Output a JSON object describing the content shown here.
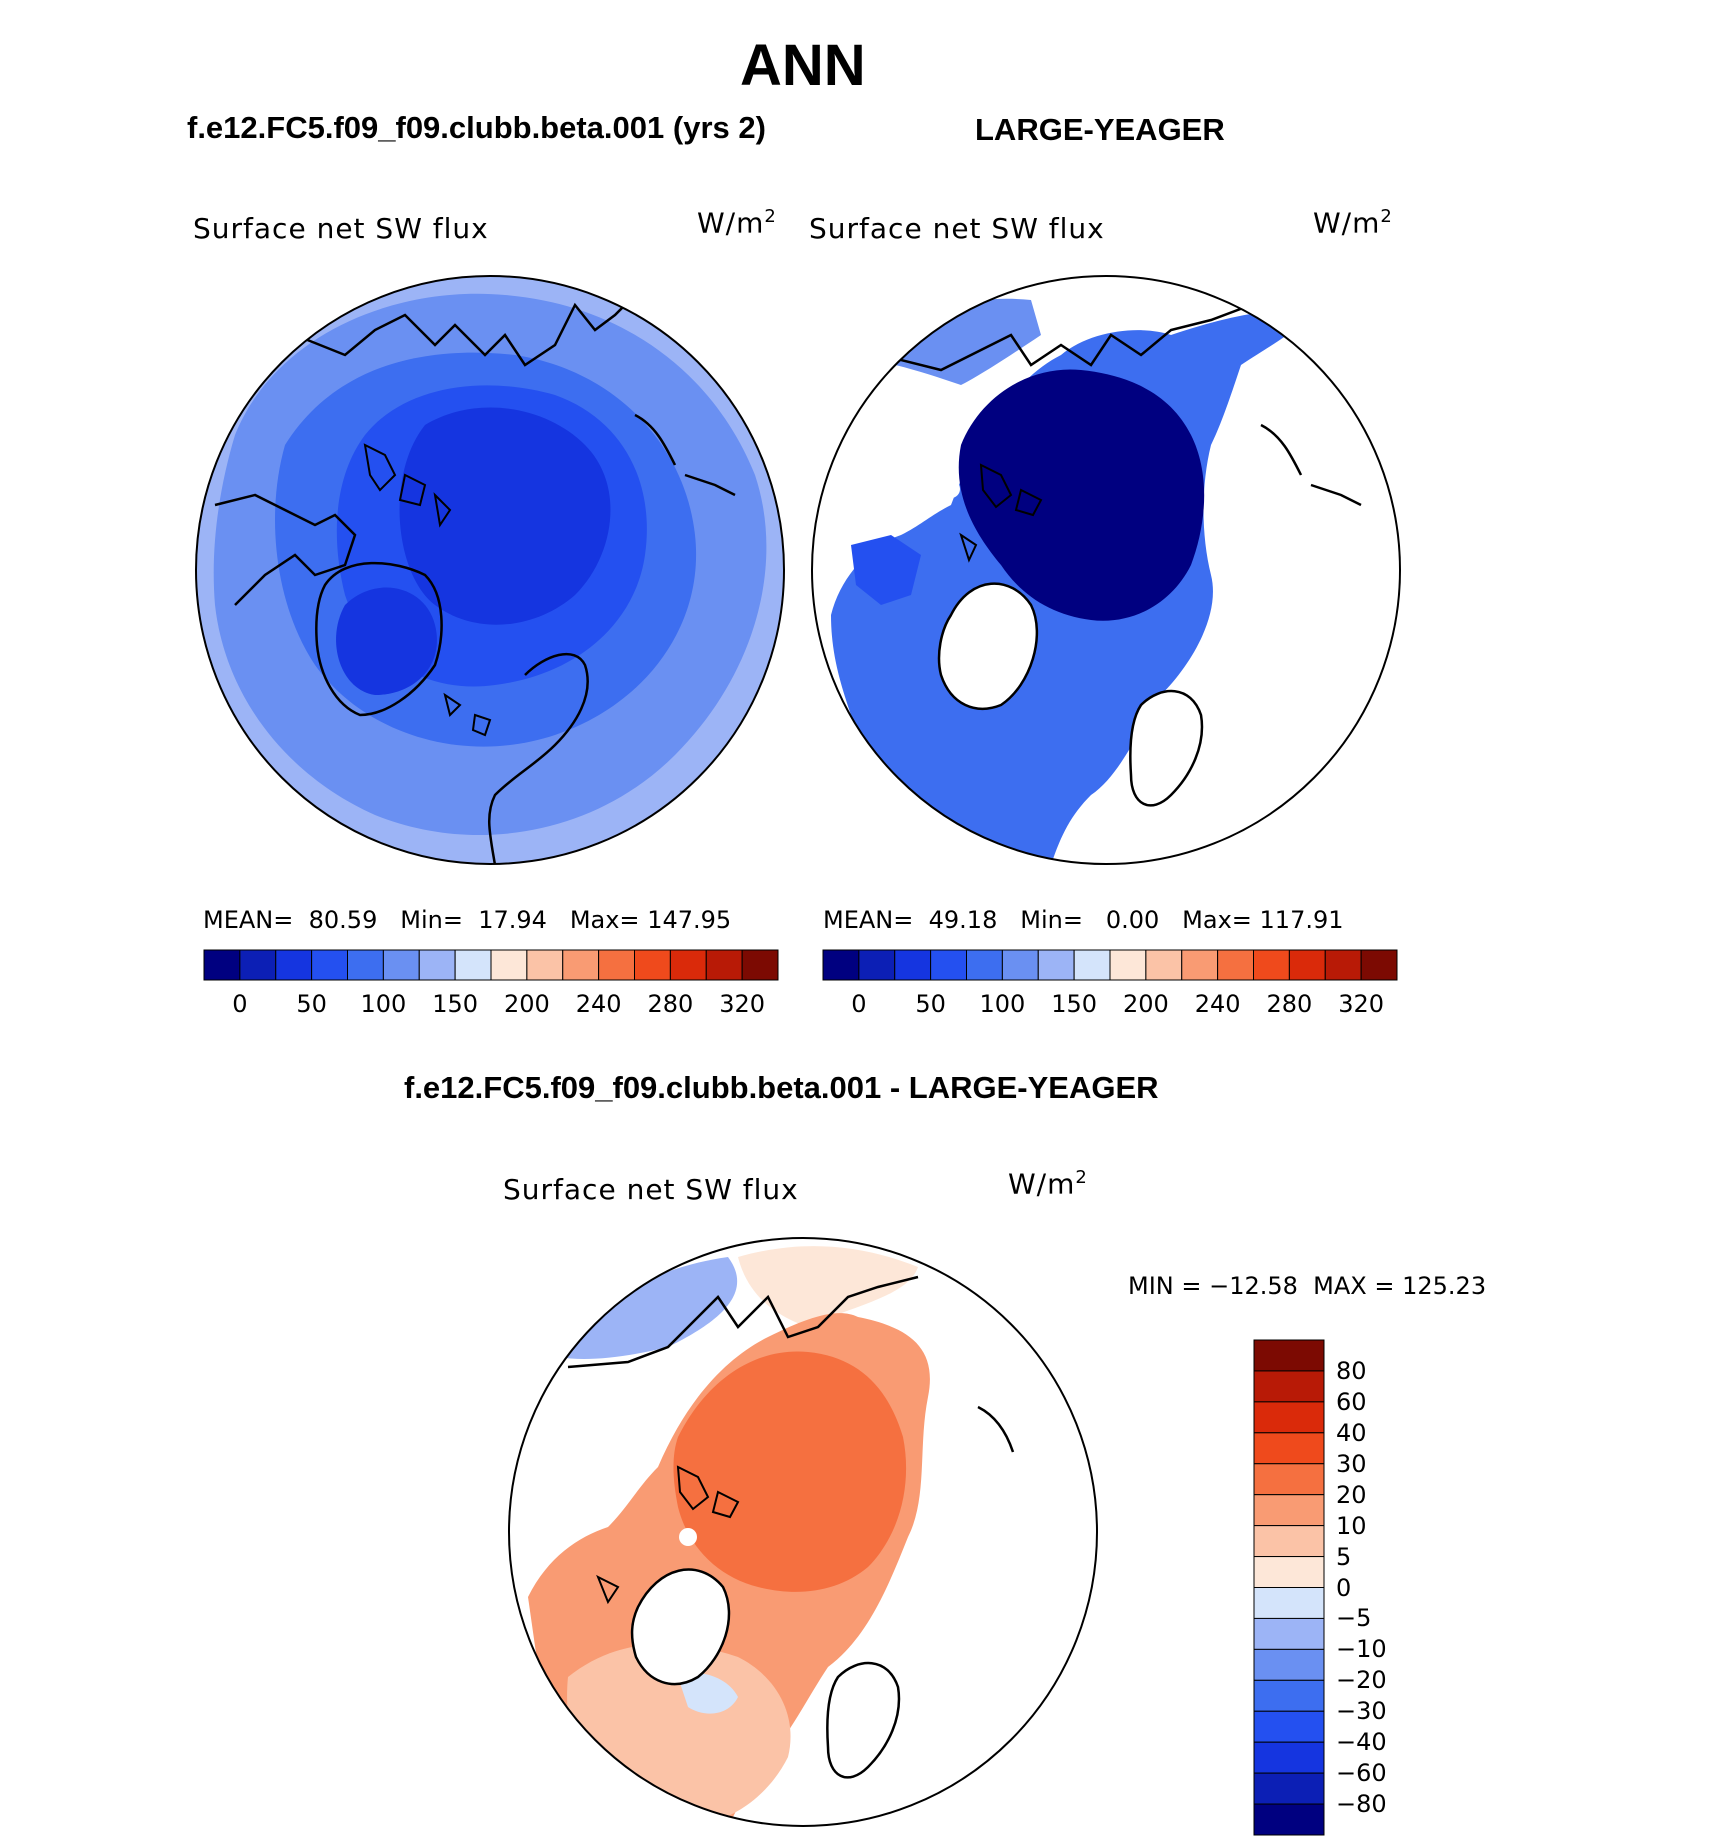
{
  "header": {
    "title": "ANN"
  },
  "colors": {
    "abs_scale": [
      "#000080",
      "#0c1fb5",
      "#1535e0",
      "#2450f0",
      "#3d6ef0",
      "#6a90f2",
      "#9cb4f6",
      "#d4e4fb",
      "#fde7d8",
      "#fbc3a7",
      "#f99b73",
      "#f57040",
      "#ef4a1c",
      "#da2a0a",
      "#b81a06",
      "#7c0a02"
    ],
    "diff_scale": [
      "#7c0a02",
      "#b81a06",
      "#da2a0a",
      "#ef4a1c",
      "#f57040",
      "#f99b73",
      "#fbc3a7",
      "#fde7d8",
      "#d4e4fb",
      "#9cb4f6",
      "#6a90f2",
      "#3d6ef0",
      "#2450f0",
      "#1535e0",
      "#0c1fb5",
      "#000080"
    ],
    "coast": "#000000"
  },
  "panels": {
    "model": {
      "case": "f.e12.FC5.f09_f09.clubb.beta.001 (yrs 2)",
      "variable": "Surface net SW flux",
      "units_base": "W/m",
      "units_exp": "2",
      "mean_label": "MEAN=",
      "mean": "80.59",
      "min_label": "Min=",
      "min": "17.94",
      "max_label": "Max=",
      "max": "147.95",
      "colorbar_ticks": [
        "0",
        "50",
        "100",
        "150",
        "200",
        "240",
        "280",
        "320"
      ]
    },
    "obs": {
      "case": "LARGE-YEAGER",
      "variable": "Surface net SW flux",
      "units_base": "W/m",
      "units_exp": "2",
      "mean_label": "MEAN=",
      "mean": "49.18",
      "min_label": "Min=",
      "min": "0.00",
      "max_label": "Max=",
      "max": "117.91",
      "colorbar_ticks": [
        "0",
        "50",
        "100",
        "150",
        "200",
        "240",
        "280",
        "320"
      ]
    },
    "diff": {
      "case": "f.e12.FC5.f09_f09.clubb.beta.001 - LARGE-YEAGER",
      "variable": "Surface net SW flux",
      "units_base": "W/m",
      "units_exp": "2",
      "minmax": "MIN = −12.58  MAX = 125.23",
      "colorbar_ticks": [
        "80",
        "60",
        "40",
        "30",
        "20",
        "10",
        "5",
        "0",
        "−5",
        "−10",
        "−20",
        "−30",
        "−40",
        "−60",
        "−80"
      ]
    }
  }
}
